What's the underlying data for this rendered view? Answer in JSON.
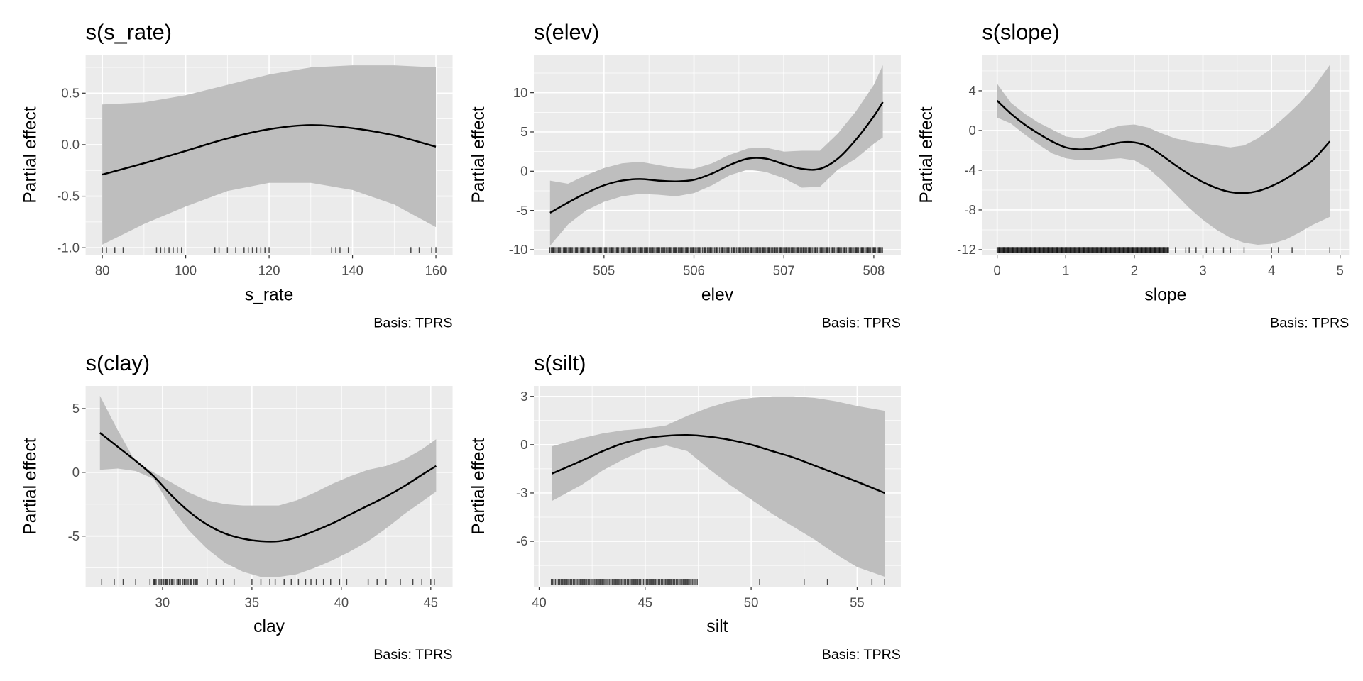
{
  "chart_data": [
    {
      "type": "line",
      "title": "s(s_rate)",
      "xlabel": "s_rate",
      "ylabel": "Partial effect",
      "caption": "Basis: TPRS",
      "xlim": [
        76,
        164
      ],
      "ylim": [
        -1.07,
        0.87
      ],
      "xticks": [
        80,
        100,
        120,
        140,
        160
      ],
      "xtick_labels": [
        "80",
        "100",
        "120",
        "140",
        "160"
      ],
      "yticks": [
        0.5,
        0,
        -0.5,
        -1
      ],
      "ytick_labels": [
        "0.5",
        "0.0",
        "-0.5",
        "-1.0"
      ],
      "x": [
        80,
        90,
        100,
        110,
        120,
        130,
        140,
        150,
        160
      ],
      "fit": [
        -0.29,
        -0.18,
        -0.06,
        0.06,
        0.15,
        0.19,
        0.16,
        0.09,
        -0.02
      ],
      "upper": [
        0.39,
        0.41,
        0.48,
        0.58,
        0.68,
        0.75,
        0.77,
        0.77,
        0.75
      ],
      "lower": [
        -0.97,
        -0.77,
        -0.6,
        -0.45,
        -0.37,
        -0.37,
        -0.44,
        -0.58,
        -0.8
      ],
      "rug": [
        80,
        81,
        83,
        85,
        93,
        94,
        95,
        96,
        97,
        98,
        99,
        107,
        108,
        110,
        112,
        114,
        115,
        116,
        117,
        118,
        119,
        120,
        135,
        136,
        137,
        139,
        154,
        156,
        159,
        160
      ],
      "rug_dense": []
    },
    {
      "type": "line",
      "title": "s(elev)",
      "xlabel": "elev",
      "ylabel": "Partial effect",
      "caption": "Basis: TPRS",
      "xlim": [
        504.22,
        508.3
      ],
      "ylim": [
        -10.67,
        14.8
      ],
      "xticks": [
        505,
        506,
        507,
        508
      ],
      "xtick_labels": [
        "505",
        "506",
        "507",
        "508"
      ],
      "yticks": [
        10,
        5,
        0,
        -5,
        -10
      ],
      "ytick_labels": [
        "10",
        "5",
        "0",
        "-5",
        "-10"
      ],
      "x": [
        504.4,
        504.6,
        504.8,
        505,
        505.2,
        505.4,
        505.6,
        505.8,
        506,
        506.2,
        506.4,
        506.6,
        506.8,
        507,
        507.2,
        507.4,
        507.6,
        507.8,
        508,
        508.1
      ],
      "fit": [
        -5.3,
        -4,
        -2.8,
        -1.8,
        -1.2,
        -1.0,
        -1.2,
        -1.3,
        -1.1,
        -0.3,
        0.8,
        1.6,
        1.6,
        0.9,
        0.3,
        0.3,
        1.6,
        4.0,
        7.0,
        8.8
      ],
      "upper": [
        -1.2,
        -1.6,
        -0.5,
        0.4,
        1.0,
        1.2,
        0.8,
        0.4,
        0.3,
        1.0,
        2.1,
        2.9,
        3.0,
        2.5,
        2.6,
        2.6,
        4.8,
        7.6,
        11,
        13.5
      ],
      "lower": [
        -9.5,
        -6.8,
        -5,
        -3.9,
        -3.2,
        -2.9,
        -3.0,
        -3.2,
        -2.8,
        -1.8,
        -0.5,
        0.2,
        -0.1,
        -0.9,
        -2.1,
        -2.0,
        0.2,
        1.6,
        3.5,
        4.3
      ],
      "rug": [],
      "rug_dense": [
        [
          504.4,
          508.1,
          0.012
        ]
      ]
    },
    {
      "type": "line",
      "title": "s(slope)",
      "xlabel": "slope",
      "ylabel": "Partial effect",
      "caption": "Basis: TPRS",
      "xlim": [
        -0.22,
        5.13
      ],
      "ylim": [
        -12.53,
        7.6
      ],
      "xticks": [
        0,
        1,
        2,
        3,
        4,
        5
      ],
      "xtick_labels": [
        "0",
        "1",
        "2",
        "3",
        "4",
        "5"
      ],
      "yticks": [
        4,
        0,
        -4,
        -8,
        -12
      ],
      "ytick_labels": [
        "4",
        "0",
        "-4",
        "-8",
        "-12"
      ],
      "x": [
        0,
        0.2,
        0.4,
        0.6,
        0.8,
        1.0,
        1.2,
        1.4,
        1.6,
        1.8,
        2.0,
        2.2,
        2.4,
        2.6,
        2.8,
        3.0,
        3.2,
        3.4,
        3.6,
        3.8,
        4.0,
        4.2,
        4.4,
        4.6,
        4.85
      ],
      "fit": [
        3,
        1.7,
        0.6,
        -0.3,
        -1.1,
        -1.7,
        -1.9,
        -1.8,
        -1.5,
        -1.2,
        -1.2,
        -1.6,
        -2.5,
        -3.5,
        -4.4,
        -5.2,
        -5.8,
        -6.2,
        -6.3,
        -6.1,
        -5.6,
        -4.9,
        -4.0,
        -3.0,
        -1.1
      ],
      "upper": [
        4.7,
        2.8,
        1.7,
        0.8,
        0.1,
        -0.6,
        -0.8,
        -0.5,
        0.1,
        0.5,
        0.6,
        0.3,
        -0.3,
        -0.8,
        -1.1,
        -1.3,
        -1.5,
        -1.7,
        -1.5,
        -0.8,
        0.2,
        1.4,
        2.7,
        4.2,
        6.6
      ],
      "lower": [
        1.3,
        0.7,
        -0.4,
        -1.4,
        -2.3,
        -2.8,
        -3.0,
        -3.0,
        -2.9,
        -2.8,
        -3.0,
        -3.8,
        -5.0,
        -6.4,
        -7.8,
        -9.0,
        -10.0,
        -10.8,
        -11.3,
        -11.5,
        -11.4,
        -11.0,
        -10.3,
        -9.5,
        -8.7
      ],
      "rug": [
        2.6,
        2.75,
        2.8,
        2.9,
        3.05,
        3.15,
        3.3,
        3.4,
        3.6,
        4.0,
        4.1,
        4.3,
        4.85
      ],
      "rug_dense": [
        [
          0,
          2.5,
          0.01
        ]
      ]
    },
    {
      "type": "line",
      "title": "s(clay)",
      "xlabel": "clay",
      "ylabel": "Partial effect",
      "caption": "Basis: TPRS",
      "xlim": [
        25.7,
        46.22
      ],
      "ylim": [
        -8.97,
        6.78
      ],
      "xticks": [
        30,
        35,
        40,
        45
      ],
      "xtick_labels": [
        "30",
        "35",
        "40",
        "45"
      ],
      "yticks": [
        5,
        0,
        -5
      ],
      "ytick_labels": [
        "5",
        "0",
        "-5"
      ],
      "x": [
        26.5,
        27.5,
        28.5,
        29.5,
        30.5,
        31.5,
        32.5,
        33.5,
        34.5,
        35.5,
        36.5,
        37.5,
        38.5,
        39.5,
        40.5,
        41.5,
        42.5,
        43.5,
        44.5,
        45.3
      ],
      "fit": [
        3.1,
        2.0,
        0.9,
        -0.3,
        -1.8,
        -3.1,
        -4.1,
        -4.8,
        -5.2,
        -5.4,
        -5.4,
        -5.1,
        -4.6,
        -4.0,
        -3.3,
        -2.6,
        -1.9,
        -1.1,
        -0.2,
        0.5
      ],
      "upper": [
        6,
        3.3,
        0.8,
        0.0,
        -0.8,
        -1.6,
        -2.2,
        -2.5,
        -2.6,
        -2.6,
        -2.6,
        -2.2,
        -1.6,
        -0.9,
        -0.3,
        0.2,
        0.5,
        1.0,
        1.8,
        2.6
      ],
      "lower": [
        0.2,
        0.3,
        0.1,
        -0.5,
        -2.8,
        -4.6,
        -6.0,
        -7.1,
        -7.8,
        -8.2,
        -8.2,
        -8.0,
        -7.5,
        -6.9,
        -6.2,
        -5.4,
        -4.4,
        -3.3,
        -2.3,
        -1.5
      ],
      "rug": [
        26.6,
        27.3,
        27.8,
        28.5,
        29.3,
        32.5,
        33,
        33.4,
        34,
        35,
        35.5,
        36,
        36.3,
        36.8,
        37.2,
        37.6,
        38,
        38.3,
        38.6,
        39,
        39.4,
        39.9,
        40.3,
        41.5,
        42,
        42.5,
        43.3,
        44,
        44.5,
        45,
        45.2
      ],
      "rug_dense": [
        [
          29.5,
          32,
          0.08
        ]
      ]
    },
    {
      "type": "line",
      "title": "s(silt)",
      "xlabel": "silt",
      "ylabel": "Partial effect",
      "caption": "Basis: TPRS",
      "xlim": [
        39.75,
        57.06
      ],
      "ylim": [
        -8.82,
        3.65
      ],
      "xticks": [
        40,
        45,
        50,
        55
      ],
      "xtick_labels": [
        "40",
        "45",
        "50",
        "55"
      ],
      "yticks": [
        3,
        0,
        -3,
        -6
      ],
      "ytick_labels": [
        "3",
        "0",
        "-3",
        "-6"
      ],
      "x": [
        40.6,
        42,
        43,
        44,
        45,
        46,
        47,
        48,
        49,
        50,
        51,
        52,
        53,
        54,
        55,
        56.3
      ],
      "fit": [
        -1.8,
        -1.0,
        -0.4,
        0.1,
        0.4,
        0.55,
        0.6,
        0.5,
        0.3,
        0.0,
        -0.4,
        -0.8,
        -1.3,
        -1.8,
        -2.3,
        -3.0
      ],
      "upper": [
        -0.1,
        0.4,
        0.7,
        0.9,
        1.0,
        1.2,
        1.8,
        2.3,
        2.7,
        2.9,
        3.0,
        3.0,
        2.9,
        2.7,
        2.4,
        2.1
      ],
      "lower": [
        -3.5,
        -2.5,
        -1.6,
        -0.9,
        -0.3,
        -0.05,
        -0.4,
        -1.5,
        -2.5,
        -3.4,
        -4.3,
        -5.1,
        -5.9,
        -6.8,
        -7.6,
        -8.2
      ],
      "rug": [
        50.4,
        52.5,
        53.6,
        55.7,
        56.3
      ],
      "rug_dense": [
        [
          40.6,
          47.5,
          0.06
        ]
      ]
    }
  ],
  "colors": {
    "panel_bg": "#EBEBEB",
    "grid": "#FFFFFF",
    "ribbon": "#BEBEBE",
    "line": "#000000"
  }
}
